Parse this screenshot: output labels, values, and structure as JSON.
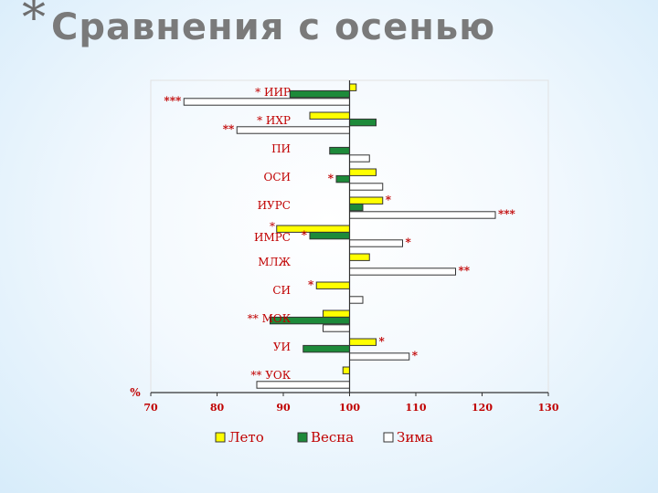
{
  "slide": {
    "bullet": "*",
    "title": "Сравнения с осенью"
  },
  "chart_data": {
    "type": "bar",
    "orientation": "horizontal",
    "title": "Сравнения с осенью",
    "y_unit_label": "%",
    "baseline": 100,
    "xlim": [
      70,
      130
    ],
    "ticks": [
      70,
      80,
      90,
      100,
      110,
      120,
      130
    ],
    "categories": [
      "ИИР",
      "ИХР",
      "ПИ",
      "ОСИ",
      "ИУРС",
      "ИМРС",
      "МЛЖ",
      "СИ",
      "МОК",
      "УИ",
      "УОК"
    ],
    "category_prefix": [
      "*",
      "*",
      "",
      "",
      "",
      "*",
      "",
      "",
      "**",
      "",
      "**"
    ],
    "series": [
      {
        "name": "Лето",
        "color": "#ffff00",
        "values": [
          101,
          94,
          null,
          104,
          105,
          89,
          103,
          95,
          96,
          104,
          99
        ],
        "annotations": [
          "",
          "",
          "",
          "",
          "*",
          "",
          "",
          "*",
          "",
          "*",
          ""
        ]
      },
      {
        "name": "Весна",
        "color": "#1d8a3a",
        "values": [
          91,
          104,
          97,
          98,
          102,
          94,
          null,
          null,
          88,
          93,
          null
        ],
        "annotations": [
          "",
          "",
          "",
          "*",
          "",
          "*",
          "",
          "",
          "",
          "",
          ""
        ]
      },
      {
        "name": "Зима",
        "color": "#ffffff",
        "values": [
          75,
          83,
          103,
          105,
          122,
          108,
          116,
          102,
          96,
          109,
          86
        ],
        "annotations": [
          "***",
          "**",
          "",
          "",
          "***",
          "*",
          "**",
          "",
          "",
          "*",
          ""
        ]
      }
    ],
    "legend": [
      "Лето",
      "Весна",
      "Зима"
    ],
    "legend_position": "bottom",
    "grid": false
  }
}
